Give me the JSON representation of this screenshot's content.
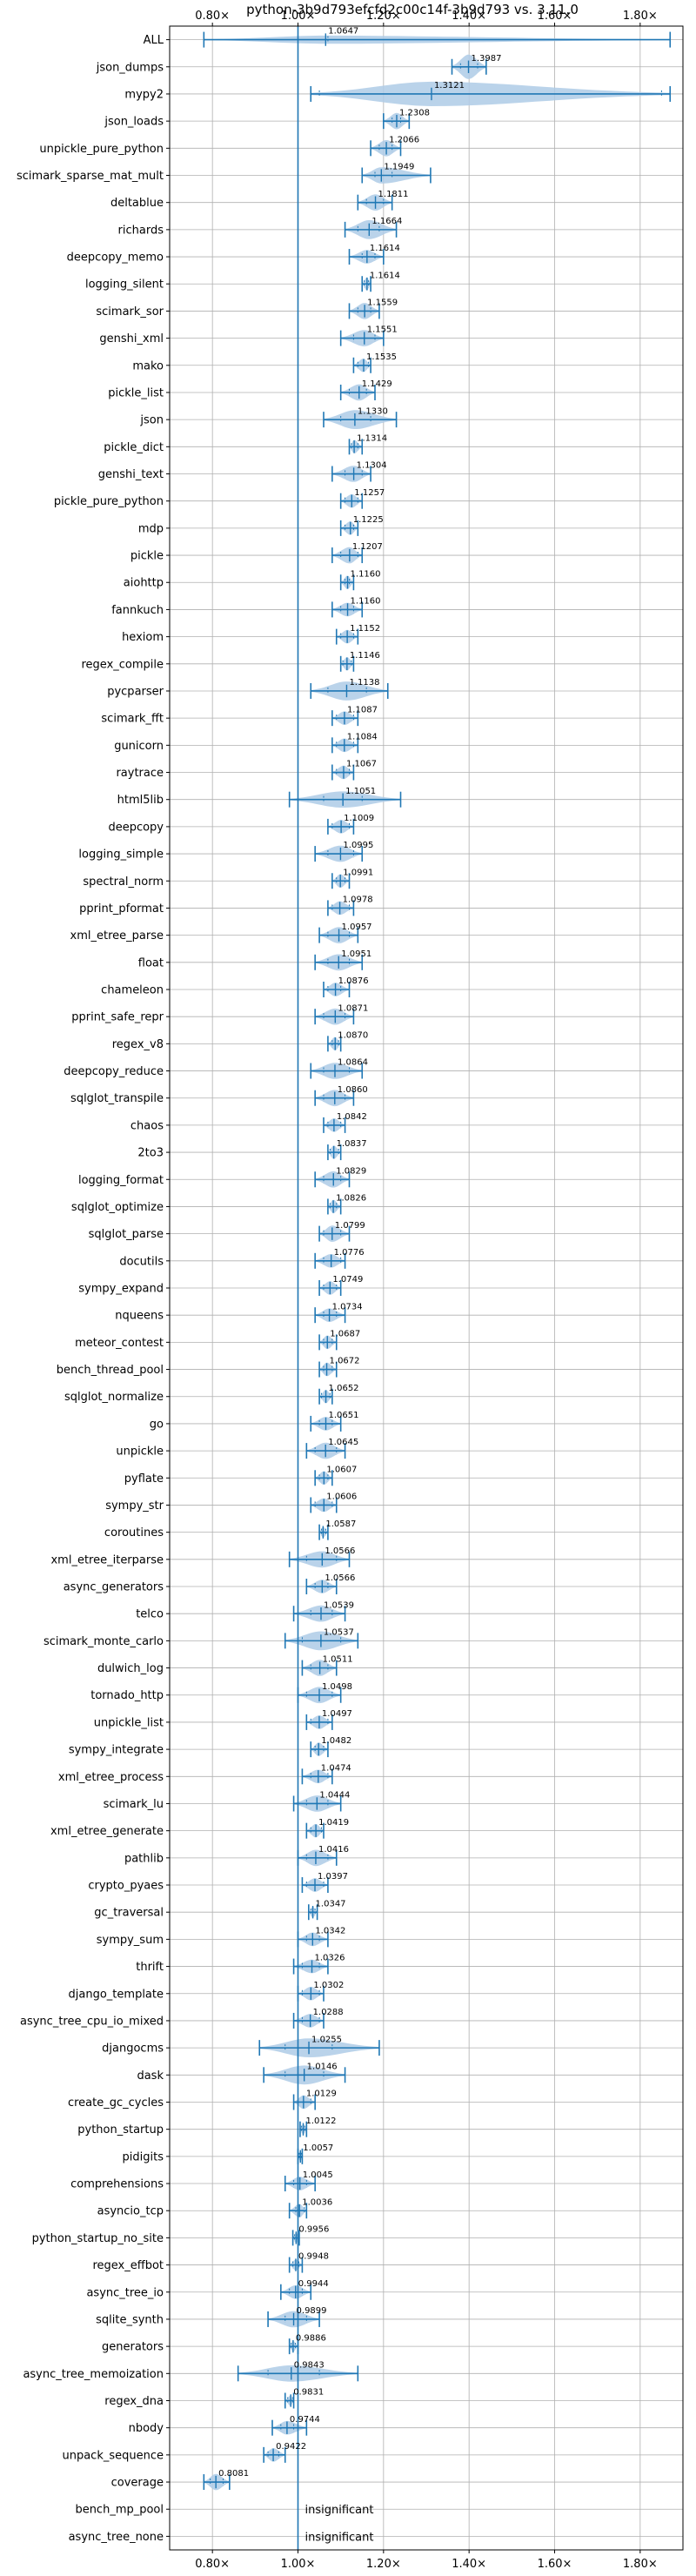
{
  "chart_data": {
    "type": "violin",
    "title": "python-3b9d793efcfd2c00c14f-3b9d793 vs. 3.11.0",
    "xlabel": "",
    "ylabel": "",
    "xlim": [
      0.7,
      1.9
    ],
    "x_ticks": [
      0.8,
      1.0,
      1.2,
      1.4,
      1.6,
      1.8
    ],
    "x_tick_labels": [
      "0.80×",
      "1.00×",
      "1.20×",
      "1.40×",
      "1.60×",
      "1.80×"
    ],
    "reference_line": 1.0,
    "grid": true,
    "colors": {
      "violin": "#aecbe6",
      "lines": "#1f77b4",
      "grid": "#b0b0b0"
    },
    "rows": [
      {
        "name": "ALL",
        "label": "1.0647",
        "value": 1.0647,
        "min": 0.78,
        "max": 1.87,
        "q1": 1.0,
        "q3": 1.07,
        "width": 0.3
      },
      {
        "name": "json_dumps",
        "label": "1.3987",
        "value": 1.3987,
        "min": 1.36,
        "max": 1.44,
        "q1": 1.38,
        "q3": 1.42,
        "width": 0.9
      },
      {
        "name": "mypy2",
        "label": "1.3121",
        "value": 1.3121,
        "min": 1.03,
        "max": 1.87,
        "q1": 1.05,
        "q3": 1.85,
        "width": 0.9
      },
      {
        "name": "json_loads",
        "label": "1.2308",
        "value": 1.2308,
        "min": 1.2,
        "max": 1.26,
        "q1": 1.22,
        "q3": 1.24,
        "width": 0.6
      },
      {
        "name": "unpickle_pure_python",
        "label": "1.2066",
        "value": 1.2066,
        "min": 1.17,
        "max": 1.24,
        "q1": 1.19,
        "q3": 1.22,
        "width": 0.6
      },
      {
        "name": "scimark_sparse_mat_mult",
        "label": "1.1949",
        "value": 1.1949,
        "min": 1.15,
        "max": 1.31,
        "q1": 1.18,
        "q3": 1.22,
        "width": 0.6
      },
      {
        "name": "deltablue",
        "label": "1.1811",
        "value": 1.1811,
        "min": 1.14,
        "max": 1.22,
        "q1": 1.16,
        "q3": 1.2,
        "width": 0.6
      },
      {
        "name": "richards",
        "label": "1.1664",
        "value": 1.1664,
        "min": 1.11,
        "max": 1.23,
        "q1": 1.14,
        "q3": 1.19,
        "width": 0.7
      },
      {
        "name": "deepcopy_memo",
        "label": "1.1614",
        "value": 1.1614,
        "min": 1.12,
        "max": 1.2,
        "q1": 1.15,
        "q3": 1.18,
        "width": 0.5
      },
      {
        "name": "logging_silent",
        "label": "1.1614",
        "value": 1.1614,
        "min": 1.15,
        "max": 1.17,
        "q1": 1.155,
        "q3": 1.165,
        "width": 0.5
      },
      {
        "name": "scimark_sor",
        "label": "1.1559",
        "value": 1.1559,
        "min": 1.12,
        "max": 1.19,
        "q1": 1.14,
        "q3": 1.17,
        "width": 0.6
      },
      {
        "name": "genshi_xml",
        "label": "1.1551",
        "value": 1.1551,
        "min": 1.1,
        "max": 1.2,
        "q1": 1.13,
        "q3": 1.18,
        "width": 0.6
      },
      {
        "name": "mako",
        "label": "1.1535",
        "value": 1.1535,
        "min": 1.13,
        "max": 1.17,
        "q1": 1.14,
        "q3": 1.165,
        "width": 0.5
      },
      {
        "name": "pickle_list",
        "label": "1.1429",
        "value": 1.1429,
        "min": 1.1,
        "max": 1.18,
        "q1": 1.12,
        "q3": 1.16,
        "width": 0.6
      },
      {
        "name": "json",
        "label": "1.1330",
        "value": 1.133,
        "min": 1.06,
        "max": 1.23,
        "q1": 1.1,
        "q3": 1.17,
        "width": 0.7
      },
      {
        "name": "pickle_dict",
        "label": "1.1314",
        "value": 1.1314,
        "min": 1.12,
        "max": 1.15,
        "q1": 1.125,
        "q3": 1.14,
        "width": 0.5
      },
      {
        "name": "genshi_text",
        "label": "1.1304",
        "value": 1.1304,
        "min": 1.08,
        "max": 1.17,
        "q1": 1.11,
        "q3": 1.15,
        "width": 0.6
      },
      {
        "name": "pickle_pure_python",
        "label": "1.1257",
        "value": 1.1257,
        "min": 1.1,
        "max": 1.15,
        "q1": 1.11,
        "q3": 1.14,
        "width": 0.5
      },
      {
        "name": "mdp",
        "label": "1.1225",
        "value": 1.1225,
        "min": 1.1,
        "max": 1.14,
        "q1": 1.11,
        "q3": 1.13,
        "width": 0.5
      },
      {
        "name": "pickle",
        "label": "1.1207",
        "value": 1.1207,
        "min": 1.08,
        "max": 1.15,
        "q1": 1.1,
        "q3": 1.14,
        "width": 0.6
      },
      {
        "name": "aiohttp",
        "label": "1.1160",
        "value": 1.116,
        "min": 1.1,
        "max": 1.13,
        "q1": 1.11,
        "q3": 1.12,
        "width": 0.5
      },
      {
        "name": "fannkuch",
        "label": "1.1160",
        "value": 1.116,
        "min": 1.08,
        "max": 1.15,
        "q1": 1.1,
        "q3": 1.13,
        "width": 0.5
      },
      {
        "name": "hexiom",
        "label": "1.1152",
        "value": 1.1152,
        "min": 1.09,
        "max": 1.14,
        "q1": 1.1,
        "q3": 1.13,
        "width": 0.5
      },
      {
        "name": "regex_compile",
        "label": "1.1146",
        "value": 1.1146,
        "min": 1.1,
        "max": 1.13,
        "q1": 1.105,
        "q3": 1.125,
        "width": 0.5
      },
      {
        "name": "pycparser",
        "label": "1.1138",
        "value": 1.1138,
        "min": 1.03,
        "max": 1.21,
        "q1": 1.07,
        "q3": 1.16,
        "width": 0.7
      },
      {
        "name": "scimark_fft",
        "label": "1.1087",
        "value": 1.1087,
        "min": 1.08,
        "max": 1.14,
        "q1": 1.09,
        "q3": 1.13,
        "width": 0.5
      },
      {
        "name": "gunicorn",
        "label": "1.1084",
        "value": 1.1084,
        "min": 1.08,
        "max": 1.14,
        "q1": 1.09,
        "q3": 1.13,
        "width": 0.5
      },
      {
        "name": "raytrace",
        "label": "1.1067",
        "value": 1.1067,
        "min": 1.08,
        "max": 1.13,
        "q1": 1.09,
        "q3": 1.12,
        "width": 0.5
      },
      {
        "name": "html5lib",
        "label": "1.1051",
        "value": 1.1051,
        "min": 0.98,
        "max": 1.24,
        "q1": 1.06,
        "q3": 1.15,
        "width": 0.6
      },
      {
        "name": "deepcopy",
        "label": "1.1009",
        "value": 1.1009,
        "min": 1.07,
        "max": 1.13,
        "q1": 1.08,
        "q3": 1.12,
        "width": 0.5
      },
      {
        "name": "logging_simple",
        "label": "1.0995",
        "value": 1.0995,
        "min": 1.04,
        "max": 1.15,
        "q1": 1.07,
        "q3": 1.13,
        "width": 0.6
      },
      {
        "name": "spectral_norm",
        "label": "1.0991",
        "value": 1.0991,
        "min": 1.08,
        "max": 1.12,
        "q1": 1.09,
        "q3": 1.11,
        "width": 0.5
      },
      {
        "name": "pprint_pformat",
        "label": "1.0978",
        "value": 1.0978,
        "min": 1.07,
        "max": 1.13,
        "q1": 1.08,
        "q3": 1.12,
        "width": 0.5
      },
      {
        "name": "xml_etree_parse",
        "label": "1.0957",
        "value": 1.0957,
        "min": 1.05,
        "max": 1.14,
        "q1": 1.07,
        "q3": 1.12,
        "width": 0.6
      },
      {
        "name": "float",
        "label": "1.0951",
        "value": 1.0951,
        "min": 1.04,
        "max": 1.15,
        "q1": 1.07,
        "q3": 1.12,
        "width": 0.6
      },
      {
        "name": "chameleon",
        "label": "1.0876",
        "value": 1.0876,
        "min": 1.06,
        "max": 1.12,
        "q1": 1.07,
        "q3": 1.1,
        "width": 0.5
      },
      {
        "name": "pprint_safe_repr",
        "label": "1.0871",
        "value": 1.0871,
        "min": 1.04,
        "max": 1.13,
        "q1": 1.06,
        "q3": 1.11,
        "width": 0.6
      },
      {
        "name": "regex_v8",
        "label": "1.0870",
        "value": 1.087,
        "min": 1.07,
        "max": 1.1,
        "q1": 1.08,
        "q3": 1.095,
        "width": 0.5
      },
      {
        "name": "deepcopy_reduce",
        "label": "1.0864",
        "value": 1.0864,
        "min": 1.03,
        "max": 1.15,
        "q1": 1.06,
        "q3": 1.12,
        "width": 0.6
      },
      {
        "name": "sqlglot_transpile",
        "label": "1.0860",
        "value": 1.086,
        "min": 1.04,
        "max": 1.13,
        "q1": 1.06,
        "q3": 1.11,
        "width": 0.6
      },
      {
        "name": "chaos",
        "label": "1.0842",
        "value": 1.0842,
        "min": 1.06,
        "max": 1.11,
        "q1": 1.07,
        "q3": 1.1,
        "width": 0.5
      },
      {
        "name": "2to3",
        "label": "1.0837",
        "value": 1.0837,
        "min": 1.07,
        "max": 1.1,
        "q1": 1.075,
        "q3": 1.095,
        "width": 0.5
      },
      {
        "name": "logging_format",
        "label": "1.0829",
        "value": 1.0829,
        "min": 1.04,
        "max": 1.12,
        "q1": 1.06,
        "q3": 1.1,
        "width": 0.6
      },
      {
        "name": "sqlglot_optimize",
        "label": "1.0826",
        "value": 1.0826,
        "min": 1.07,
        "max": 1.1,
        "q1": 1.075,
        "q3": 1.09,
        "width": 0.5
      },
      {
        "name": "sqlglot_parse",
        "label": "1.0799",
        "value": 1.0799,
        "min": 1.05,
        "max": 1.12,
        "q1": 1.06,
        "q3": 1.1,
        "width": 0.6
      },
      {
        "name": "docutils",
        "label": "1.0776",
        "value": 1.0776,
        "min": 1.04,
        "max": 1.11,
        "q1": 1.06,
        "q3": 1.1,
        "width": 0.5
      },
      {
        "name": "sympy_expand",
        "label": "1.0749",
        "value": 1.0749,
        "min": 1.05,
        "max": 1.1,
        "q1": 1.06,
        "q3": 1.09,
        "width": 0.5
      },
      {
        "name": "nqueens",
        "label": "1.0734",
        "value": 1.0734,
        "min": 1.04,
        "max": 1.11,
        "q1": 1.06,
        "q3": 1.09,
        "width": 0.5
      },
      {
        "name": "meteor_contest",
        "label": "1.0687",
        "value": 1.0687,
        "min": 1.05,
        "max": 1.09,
        "q1": 1.06,
        "q3": 1.08,
        "width": 0.5
      },
      {
        "name": "bench_thread_pool",
        "label": "1.0672",
        "value": 1.0672,
        "min": 1.05,
        "max": 1.09,
        "q1": 1.06,
        "q3": 1.08,
        "width": 0.5
      },
      {
        "name": "sqlglot_normalize",
        "label": "1.0652",
        "value": 1.0652,
        "min": 1.05,
        "max": 1.08,
        "q1": 1.055,
        "q3": 1.075,
        "width": 0.5
      },
      {
        "name": "go",
        "label": "1.0651",
        "value": 1.0651,
        "min": 1.03,
        "max": 1.1,
        "q1": 1.05,
        "q3": 1.08,
        "width": 0.5
      },
      {
        "name": "unpickle",
        "label": "1.0645",
        "value": 1.0645,
        "min": 1.02,
        "max": 1.11,
        "q1": 1.04,
        "q3": 1.09,
        "width": 0.6
      },
      {
        "name": "pyflate",
        "label": "1.0607",
        "value": 1.0607,
        "min": 1.04,
        "max": 1.08,
        "q1": 1.05,
        "q3": 1.07,
        "width": 0.5
      },
      {
        "name": "sympy_str",
        "label": "1.0606",
        "value": 1.0606,
        "min": 1.03,
        "max": 1.09,
        "q1": 1.04,
        "q3": 1.08,
        "width": 0.5
      },
      {
        "name": "coroutines",
        "label": "1.0587",
        "value": 1.0587,
        "min": 1.05,
        "max": 1.07,
        "q1": 1.055,
        "q3": 1.065,
        "width": 0.4
      },
      {
        "name": "xml_etree_iterparse",
        "label": "1.0566",
        "value": 1.0566,
        "min": 0.98,
        "max": 1.12,
        "q1": 1.02,
        "q3": 1.09,
        "width": 0.6
      },
      {
        "name": "async_generators",
        "label": "1.0566",
        "value": 1.0566,
        "min": 1.02,
        "max": 1.09,
        "q1": 1.04,
        "q3": 1.07,
        "width": 0.5
      },
      {
        "name": "telco",
        "label": "1.0539",
        "value": 1.0539,
        "min": 0.99,
        "max": 1.11,
        "q1": 1.03,
        "q3": 1.08,
        "width": 0.6
      },
      {
        "name": "scimark_monte_carlo",
        "label": "1.0537",
        "value": 1.0537,
        "min": 0.97,
        "max": 1.14,
        "q1": 1.01,
        "q3": 1.1,
        "width": 0.7
      },
      {
        "name": "dulwich_log",
        "label": "1.0511",
        "value": 1.0511,
        "min": 1.01,
        "max": 1.09,
        "q1": 1.03,
        "q3": 1.07,
        "width": 0.6
      },
      {
        "name": "tornado_http",
        "label": "1.0498",
        "value": 1.0498,
        "min": 1.0,
        "max": 1.1,
        "q1": 1.02,
        "q3": 1.08,
        "width": 0.6
      },
      {
        "name": "unpickle_list",
        "label": "1.0497",
        "value": 1.0497,
        "min": 1.02,
        "max": 1.08,
        "q1": 1.03,
        "q3": 1.07,
        "width": 0.5
      },
      {
        "name": "sympy_integrate",
        "label": "1.0482",
        "value": 1.0482,
        "min": 1.03,
        "max": 1.07,
        "q1": 1.04,
        "q3": 1.06,
        "width": 0.5
      },
      {
        "name": "xml_etree_process",
        "label": "1.0474",
        "value": 1.0474,
        "min": 1.01,
        "max": 1.08,
        "q1": 1.03,
        "q3": 1.07,
        "width": 0.5
      },
      {
        "name": "scimark_lu",
        "label": "1.0444",
        "value": 1.0444,
        "min": 0.99,
        "max": 1.1,
        "q1": 1.02,
        "q3": 1.07,
        "width": 0.6
      },
      {
        "name": "xml_etree_generate",
        "label": "1.0419",
        "value": 1.0419,
        "min": 1.02,
        "max": 1.06,
        "q1": 1.03,
        "q3": 1.055,
        "width": 0.5
      },
      {
        "name": "pathlib",
        "label": "1.0416",
        "value": 1.0416,
        "min": 1.0,
        "max": 1.09,
        "q1": 1.02,
        "q3": 1.07,
        "width": 0.6
      },
      {
        "name": "crypto_pyaes",
        "label": "1.0397",
        "value": 1.0397,
        "min": 1.01,
        "max": 1.07,
        "q1": 1.02,
        "q3": 1.06,
        "width": 0.5
      },
      {
        "name": "gc_traversal",
        "label": "1.0347",
        "value": 1.0347,
        "min": 1.025,
        "max": 1.045,
        "q1": 1.03,
        "q3": 1.04,
        "width": 0.4
      },
      {
        "name": "sympy_sum",
        "label": "1.0342",
        "value": 1.0342,
        "min": 1.0,
        "max": 1.07,
        "q1": 1.02,
        "q3": 1.05,
        "width": 0.5
      },
      {
        "name": "thrift",
        "label": "1.0326",
        "value": 1.0326,
        "min": 0.99,
        "max": 1.07,
        "q1": 1.01,
        "q3": 1.05,
        "width": 0.5
      },
      {
        "name": "django_template",
        "label": "1.0302",
        "value": 1.0302,
        "min": 1.0,
        "max": 1.06,
        "q1": 1.01,
        "q3": 1.05,
        "width": 0.5
      },
      {
        "name": "async_tree_cpu_io_mixed",
        "label": "1.0288",
        "value": 1.0288,
        "min": 0.99,
        "max": 1.06,
        "q1": 1.01,
        "q3": 1.05,
        "width": 0.5
      },
      {
        "name": "djangocms",
        "label": "1.0255",
        "value": 1.0255,
        "min": 0.91,
        "max": 1.19,
        "q1": 0.97,
        "q3": 1.08,
        "width": 0.7
      },
      {
        "name": "dask",
        "label": "1.0146",
        "value": 1.0146,
        "min": 0.92,
        "max": 1.11,
        "q1": 0.97,
        "q3": 1.06,
        "width": 0.7
      },
      {
        "name": "create_gc_cycles",
        "label": "1.0129",
        "value": 1.0129,
        "min": 0.99,
        "max": 1.04,
        "q1": 1.0,
        "q3": 1.03,
        "width": 0.5
      },
      {
        "name": "python_startup",
        "label": "1.0122",
        "value": 1.0122,
        "min": 1.005,
        "max": 1.02,
        "q1": 1.008,
        "q3": 1.016,
        "width": 0.4
      },
      {
        "name": "pidigits",
        "label": "1.0057",
        "value": 1.0057,
        "min": 1.0,
        "max": 1.01,
        "q1": 1.003,
        "q3": 1.008,
        "width": 0.4
      },
      {
        "name": "comprehensions",
        "label": "1.0045",
        "value": 1.0045,
        "min": 0.97,
        "max": 1.04,
        "q1": 0.99,
        "q3": 1.02,
        "width": 0.5
      },
      {
        "name": "asyncio_tcp",
        "label": "1.0036",
        "value": 1.0036,
        "min": 0.98,
        "max": 1.02,
        "q1": 0.995,
        "q3": 1.015,
        "width": 0.5
      },
      {
        "name": "python_startup_no_site",
        "label": "0.9956",
        "value": 0.9956,
        "min": 0.988,
        "max": 1.003,
        "q1": 0.992,
        "q3": 0.999,
        "width": 0.4
      },
      {
        "name": "regex_effbot",
        "label": "0.9948",
        "value": 0.9948,
        "min": 0.98,
        "max": 1.01,
        "q1": 0.988,
        "q3": 1.002,
        "width": 0.4
      },
      {
        "name": "async_tree_io",
        "label": "0.9944",
        "value": 0.9944,
        "min": 0.96,
        "max": 1.03,
        "q1": 0.98,
        "q3": 1.01,
        "width": 0.5
      },
      {
        "name": "sqlite_synth",
        "label": "0.9899",
        "value": 0.9899,
        "min": 0.93,
        "max": 1.05,
        "q1": 0.97,
        "q3": 1.02,
        "width": 0.6
      },
      {
        "name": "generators",
        "label": "0.9886",
        "value": 0.9886,
        "min": 0.98,
        "max": 1.0,
        "q1": 0.984,
        "q3": 0.994,
        "width": 0.4
      },
      {
        "name": "async_tree_memoization",
        "label": "0.9843",
        "value": 0.9843,
        "min": 0.86,
        "max": 1.14,
        "q1": 0.93,
        "q3": 1.05,
        "width": 0.6
      },
      {
        "name": "regex_dna",
        "label": "0.9831",
        "value": 0.9831,
        "min": 0.97,
        "max": 0.99,
        "q1": 0.976,
        "q3": 0.988,
        "width": 0.4
      },
      {
        "name": "nbody",
        "label": "0.9744",
        "value": 0.9744,
        "min": 0.94,
        "max": 1.02,
        "q1": 0.96,
        "q3": 0.99,
        "width": 0.5
      },
      {
        "name": "unpack_sequence",
        "label": "0.9422",
        "value": 0.9422,
        "min": 0.92,
        "max": 0.97,
        "q1": 0.93,
        "q3": 0.955,
        "width": 0.5
      },
      {
        "name": "coverage",
        "label": "0.8081",
        "value": 0.8081,
        "min": 0.78,
        "max": 0.84,
        "q1": 0.795,
        "q3": 0.825,
        "width": 0.6
      },
      {
        "name": "bench_mp_pool",
        "label": "insignificant",
        "value": null
      },
      {
        "name": "async_tree_none",
        "label": "insignificant",
        "value": null
      }
    ]
  }
}
